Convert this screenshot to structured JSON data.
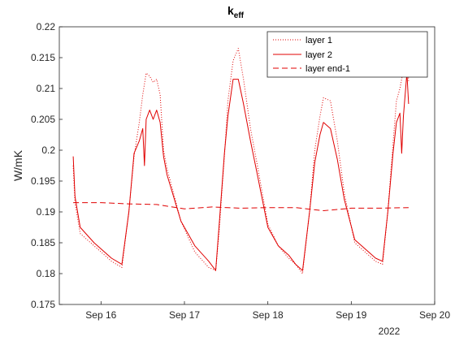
{
  "chart_data": {
    "type": "line",
    "title": "k",
    "title_subscript": "eff",
    "xlabel": "",
    "ylabel": "W/mK",
    "xlim": [
      "2022-09-15 12:00",
      "2022-09-20 00:00"
    ],
    "ylim": [
      0.175,
      0.22
    ],
    "x_ticks": [
      "2022-09-16",
      "2022-09-17",
      "2022-09-18",
      "2022-09-19",
      "2022-09-20"
    ],
    "x_tick_labels": [
      "Sep 16",
      "Sep 17",
      "Sep 18",
      "Sep 19",
      "Sep 20"
    ],
    "x_secondary_label": "2022",
    "y_ticks": [
      0.175,
      0.18,
      0.185,
      0.19,
      0.195,
      0.2,
      0.205,
      0.21,
      0.215,
      0.22
    ],
    "y_tick_labels": [
      "0.175",
      "0.18",
      "0.185",
      "0.19",
      "0.195",
      "0.2",
      "0.205",
      "0.21",
      "0.215",
      "0.22"
    ],
    "grid": false,
    "legend_position": "top-right",
    "series": [
      {
        "name": "layer 1",
        "color": "#e00000",
        "line_style": "dotted",
        "points": [
          [
            "2022-09-15 16:00",
            0.1975
          ],
          [
            "2022-09-15 16:30",
            0.1915
          ],
          [
            "2022-09-15 18:00",
            0.1865
          ],
          [
            "2022-09-15 22:00",
            0.1845
          ],
          [
            "2022-09-16 03:00",
            0.182
          ],
          [
            "2022-09-16 06:00",
            0.181
          ],
          [
            "2022-09-16 08:00",
            0.19
          ],
          [
            "2022-09-16 09:30",
            0.199
          ],
          [
            "2022-09-16 11:00",
            0.2045
          ],
          [
            "2022-09-16 12:00",
            0.209
          ],
          [
            "2022-09-16 13:00",
            0.2125
          ],
          [
            "2022-09-16 14:00",
            0.212
          ],
          [
            "2022-09-16 15:00",
            0.211
          ],
          [
            "2022-09-16 16:00",
            0.2115
          ],
          [
            "2022-09-16 17:00",
            0.209
          ],
          [
            "2022-09-16 18:00",
            0.2
          ],
          [
            "2022-09-16 19:00",
            0.197
          ],
          [
            "2022-09-16 23:00",
            0.1885
          ],
          [
            "2022-09-17 03:00",
            0.1835
          ],
          [
            "2022-09-17 07:00",
            0.181
          ],
          [
            "2022-09-17 09:00",
            0.1805
          ],
          [
            "2022-09-17 10:00",
            0.187
          ],
          [
            "2022-09-17 11:30",
            0.199
          ],
          [
            "2022-09-17 12:30",
            0.208
          ],
          [
            "2022-09-17 14:00",
            0.2145
          ],
          [
            "2022-09-17 15:30",
            0.2165
          ],
          [
            "2022-09-17 17:00",
            0.2115
          ],
          [
            "2022-09-17 19:00",
            0.2035
          ],
          [
            "2022-09-17 21:00",
            0.1975
          ],
          [
            "2022-09-18 00:00",
            0.188
          ],
          [
            "2022-09-18 03:00",
            0.1845
          ],
          [
            "2022-09-18 06:00",
            0.1825
          ],
          [
            "2022-09-18 08:00",
            0.1815
          ],
          [
            "2022-09-18 10:00",
            0.18
          ],
          [
            "2022-09-18 12:00",
            0.19
          ],
          [
            "2022-09-18 13:30",
            0.2
          ],
          [
            "2022-09-18 15:00",
            0.2055
          ],
          [
            "2022-09-18 16:00",
            0.2085
          ],
          [
            "2022-09-18 18:00",
            0.208
          ],
          [
            "2022-09-18 20:00",
            0.2015
          ],
          [
            "2022-09-18 22:00",
            0.193
          ],
          [
            "2022-09-19 01:00",
            0.185
          ],
          [
            "2022-09-19 05:00",
            0.183
          ],
          [
            "2022-09-19 07:00",
            0.182
          ],
          [
            "2022-09-19 09:00",
            0.1815
          ],
          [
            "2022-09-19 10:30",
            0.19
          ],
          [
            "2022-09-19 12:00",
            0.201
          ],
          [
            "2022-09-19 13:00",
            0.208
          ],
          [
            "2022-09-19 14:00",
            0.21
          ],
          [
            "2022-09-19 15:00",
            0.213
          ],
          [
            "2022-09-19 16:00",
            0.218
          ],
          [
            "2022-09-19 16:30",
            0.211
          ]
        ]
      },
      {
        "name": "layer 2",
        "color": "#e00000",
        "line_style": "solid",
        "points": [
          [
            "2022-09-15 16:00",
            0.199
          ],
          [
            "2022-09-15 16:30",
            0.1925
          ],
          [
            "2022-09-15 18:00",
            0.1875
          ],
          [
            "2022-09-15 22:00",
            0.185
          ],
          [
            "2022-09-16 03:00",
            0.1825
          ],
          [
            "2022-09-16 06:00",
            0.1815
          ],
          [
            "2022-09-16 08:00",
            0.19
          ],
          [
            "2022-09-16 09:30",
            0.1995
          ],
          [
            "2022-09-16 11:00",
            0.2015
          ],
          [
            "2022-09-16 12:00",
            0.2035
          ],
          [
            "2022-09-16 12:30",
            0.1975
          ],
          [
            "2022-09-16 13:00",
            0.205
          ],
          [
            "2022-09-16 14:00",
            0.2065
          ],
          [
            "2022-09-16 15:00",
            0.205
          ],
          [
            "2022-09-16 16:00",
            0.2065
          ],
          [
            "2022-09-16 17:00",
            0.2045
          ],
          [
            "2022-09-16 18:00",
            0.199
          ],
          [
            "2022-09-16 19:00",
            0.196
          ],
          [
            "2022-09-16 23:00",
            0.1885
          ],
          [
            "2022-09-17 03:00",
            0.1845
          ],
          [
            "2022-09-17 07:00",
            0.182
          ],
          [
            "2022-09-17 09:00",
            0.1805
          ],
          [
            "2022-09-17 10:00",
            0.188
          ],
          [
            "2022-09-17 11:30",
            0.1995
          ],
          [
            "2022-09-17 12:30",
            0.2055
          ],
          [
            "2022-09-17 14:00",
            0.2115
          ],
          [
            "2022-09-17 15:30",
            0.2115
          ],
          [
            "2022-09-17 17:00",
            0.2075
          ],
          [
            "2022-09-17 19:00",
            0.2015
          ],
          [
            "2022-09-17 21:00",
            0.196
          ],
          [
            "2022-09-18 00:00",
            0.1875
          ],
          [
            "2022-09-18 03:00",
            0.1845
          ],
          [
            "2022-09-18 06:00",
            0.183
          ],
          [
            "2022-09-18 08:00",
            0.1815
          ],
          [
            "2022-09-18 10:00",
            0.1805
          ],
          [
            "2022-09-18 12:00",
            0.19
          ],
          [
            "2022-09-18 13:30",
            0.198
          ],
          [
            "2022-09-18 15:00",
            0.2025
          ],
          [
            "2022-09-18 16:00",
            0.2045
          ],
          [
            "2022-09-18 18:00",
            0.2035
          ],
          [
            "2022-09-18 20:00",
            0.1985
          ],
          [
            "2022-09-18 22:00",
            0.192
          ],
          [
            "2022-09-19 01:00",
            0.1855
          ],
          [
            "2022-09-19 05:00",
            0.1835
          ],
          [
            "2022-09-19 07:00",
            0.1825
          ],
          [
            "2022-09-19 09:00",
            0.182
          ],
          [
            "2022-09-19 10:30",
            0.19
          ],
          [
            "2022-09-19 12:00",
            0.1995
          ],
          [
            "2022-09-19 13:00",
            0.2045
          ],
          [
            "2022-09-19 14:00",
            0.206
          ],
          [
            "2022-09-19 14:30",
            0.1995
          ],
          [
            "2022-09-19 15:00",
            0.2055
          ],
          [
            "2022-09-19 16:00",
            0.2125
          ],
          [
            "2022-09-19 16:30",
            0.2075
          ]
        ]
      },
      {
        "name": "layer end-1",
        "color": "#e00000",
        "line_style": "dashed",
        "points": [
          [
            "2022-09-15 16:00",
            0.1915
          ],
          [
            "2022-09-16 00:00",
            0.1915
          ],
          [
            "2022-09-16 08:00",
            0.1913
          ],
          [
            "2022-09-16 16:00",
            0.1912
          ],
          [
            "2022-09-17 00:00",
            0.1905
          ],
          [
            "2022-09-17 08:00",
            0.1908
          ],
          [
            "2022-09-17 16:00",
            0.1906
          ],
          [
            "2022-09-18 00:00",
            0.1907
          ],
          [
            "2022-09-18 08:00",
            0.1907
          ],
          [
            "2022-09-18 16:00",
            0.1902
          ],
          [
            "2022-09-19 00:00",
            0.1906
          ],
          [
            "2022-09-19 08:00",
            0.1906
          ],
          [
            "2022-09-19 16:30",
            0.1907
          ]
        ]
      }
    ]
  }
}
